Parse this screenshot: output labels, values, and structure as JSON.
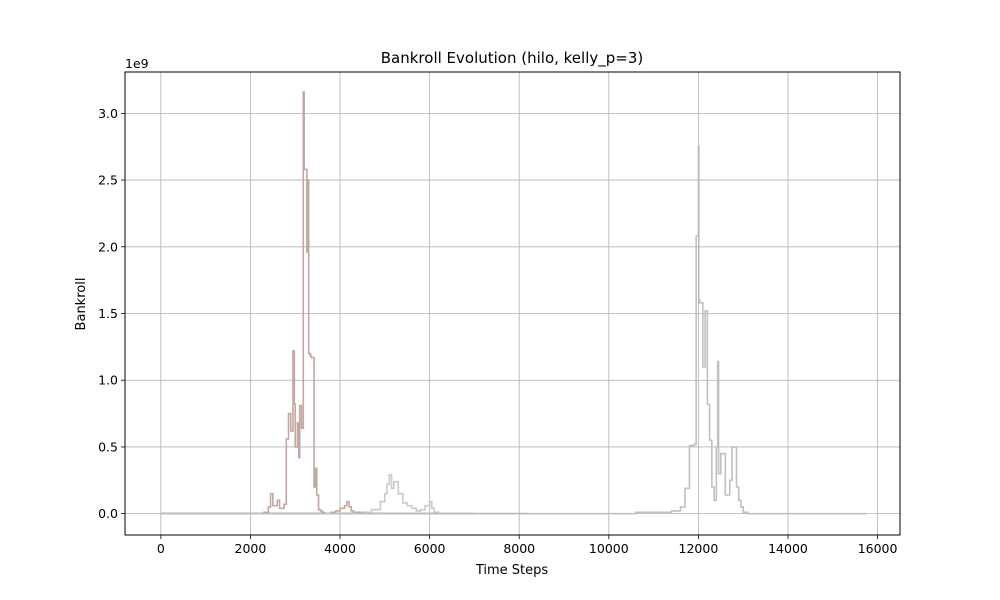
{
  "chart_data": {
    "type": "line",
    "title": "Bankroll Evolution (hilo, kelly_p=3)",
    "xlabel": "Time Steps",
    "ylabel": "Bankroll",
    "y_offset_text": "1e9",
    "xlim": [
      -800,
      16500
    ],
    "ylim": [
      -0.16,
      3.31
    ],
    "y_scale_note": "values in units of 1e9",
    "xticks": [
      0,
      2000,
      4000,
      6000,
      8000,
      10000,
      12000,
      14000,
      16000
    ],
    "yticks": [
      0.0,
      0.5,
      1.0,
      1.5,
      2.0,
      2.5,
      3.0
    ],
    "xtick_labels": [
      "0",
      "2000",
      "4000",
      "6000",
      "8000",
      "10000",
      "12000",
      "14000",
      "16000"
    ],
    "ytick_labels": [
      "0.0",
      "0.5",
      "1.0",
      "1.5",
      "2.0",
      "2.5",
      "3.0"
    ],
    "grid": true,
    "legend": false,
    "series": [
      {
        "color": "#2ca02c",
        "x": [
          0,
          500,
          1000,
          2000,
          3000,
          4000,
          4500,
          5000
        ],
        "y": [
          0.0,
          0.0,
          0.0,
          0.0,
          0.0,
          0.0,
          0.0,
          0.0
        ]
      },
      {
        "color": "#ff7f0e",
        "x": [
          0,
          2000,
          4000,
          6000,
          7000,
          8000,
          8200
        ],
        "y": [
          0.0,
          0.0,
          0.0,
          0.0,
          0.0,
          0.0,
          0.0
        ]
      },
      {
        "color": "#9467bd",
        "x": [
          0,
          1000,
          2000,
          3000,
          4000,
          5000,
          6000,
          7000
        ],
        "y": [
          0.0,
          0.0,
          0.0,
          0.0,
          0.0,
          0.0,
          0.0,
          0.0
        ]
      },
      {
        "color": "#bcbd22",
        "x": [
          0,
          1000,
          2000,
          3000,
          4000,
          4800,
          5200,
          6000
        ],
        "y": [
          0.0,
          0.0,
          0.0,
          0.0,
          0.0,
          0.0,
          0.0,
          0.0
        ]
      },
      {
        "color": "#bfa39c",
        "x": [
          0,
          1800,
          2300,
          2400,
          2450,
          2500,
          2600,
          2650,
          2750,
          2800,
          2850,
          2900,
          2950,
          2980,
          3000,
          3050,
          3080,
          3100,
          3140,
          3180,
          3200,
          3220,
          3260,
          3280,
          3300,
          3340,
          3360,
          3390,
          3420,
          3450,
          3480,
          3520,
          3560,
          3600,
          3650,
          3700,
          3800,
          3900,
          4000,
          4100,
          4150,
          4200,
          4250,
          4300,
          4400,
          4600,
          4800,
          5000,
          6000,
          7000
        ],
        "y": [
          0.0,
          0.0,
          0.01,
          0.05,
          0.15,
          0.06,
          0.1,
          0.04,
          0.07,
          0.56,
          0.75,
          0.62,
          1.22,
          0.82,
          0.5,
          0.68,
          0.42,
          0.81,
          0.64,
          3.16,
          2.58,
          2.58,
          1.96,
          2.5,
          1.2,
          1.18,
          1.17,
          1.17,
          0.2,
          0.34,
          0.14,
          0.03,
          0.02,
          0.01,
          0.0,
          0.0,
          0.01,
          0.02,
          0.04,
          0.06,
          0.09,
          0.05,
          0.02,
          0.01,
          0.01,
          0.0,
          0.0,
          0.0,
          0.0,
          0.0
        ]
      },
      {
        "color": "#c7c7c7",
        "x": [
          0,
          2000,
          4000,
          4500,
          4700,
          4900,
          5000,
          5050,
          5100,
          5150,
          5200,
          5300,
          5400,
          5500,
          5600,
          5700,
          5800,
          5900,
          6000,
          6050,
          6100,
          6200,
          6400,
          6600,
          6800
        ],
        "y": [
          0.0,
          0.0,
          0.0,
          0.01,
          0.03,
          0.09,
          0.15,
          0.22,
          0.29,
          0.19,
          0.24,
          0.15,
          0.08,
          0.06,
          0.04,
          0.02,
          0.03,
          0.06,
          0.09,
          0.04,
          0.01,
          0.0,
          0.0,
          0.0,
          0.0
        ]
      },
      {
        "color": "#bdbdbd",
        "x": [
          0,
          4000,
          8000,
          10000,
          10500,
          10600,
          11000,
          11400,
          11600,
          11700,
          11800,
          11850,
          11900,
          11950,
          12000,
          12010,
          12030,
          12050,
          12100,
          12150,
          12200,
          12250,
          12300,
          12350,
          12400,
          12430,
          12450,
          12500,
          12600,
          12700,
          12750,
          12800,
          12850,
          12900,
          12950,
          13000,
          13100,
          13300,
          14000,
          15000,
          15750
        ],
        "y": [
          0.0,
          0.0,
          0.0,
          0.0,
          0.0,
          0.01,
          0.01,
          0.02,
          0.05,
          0.19,
          0.51,
          0.51,
          0.52,
          2.08,
          2.75,
          1.6,
          1.58,
          1.58,
          1.1,
          1.52,
          0.82,
          0.55,
          0.2,
          0.1,
          0.5,
          1.14,
          0.3,
          0.45,
          0.14,
          0.25,
          0.5,
          0.5,
          0.2,
          0.1,
          0.05,
          0.01,
          0.0,
          0.0,
          0.0,
          0.0,
          0.0
        ]
      }
    ]
  }
}
